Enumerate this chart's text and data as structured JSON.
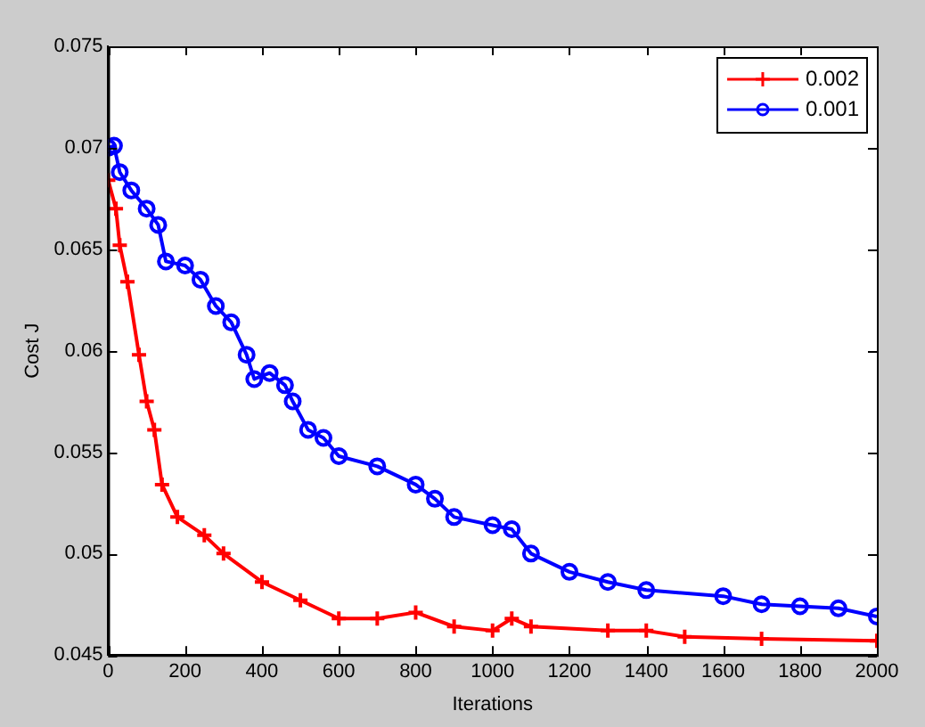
{
  "chart_data": {
    "type": "line",
    "xlabel": "Iterations",
    "ylabel": "Cost J",
    "xlim": [
      0,
      2000
    ],
    "xticks": [
      0,
      200,
      400,
      600,
      800,
      1000,
      1200,
      1400,
      1600,
      1800,
      2000
    ],
    "ylim": [
      0.045,
      0.075
    ],
    "yticks": [
      0.045,
      0.05,
      0.055,
      0.06,
      0.065,
      0.07,
      0.075
    ],
    "grid": false,
    "legend": "top right",
    "line_style": "solid",
    "series": [
      {
        "name": "0.002",
        "color": "#ff0000",
        "marker": "cross",
        "x": [
          0,
          20,
          30,
          50,
          80,
          100,
          120,
          140,
          180,
          250,
          300,
          400,
          500,
          600,
          700,
          800,
          900,
          1000,
          1050,
          1100,
          1300,
          1400,
          1500,
          1700,
          2000
        ],
        "values": [
          0.0684,
          0.067,
          0.0652,
          0.0634,
          0.0598,
          0.0575,
          0.0561,
          0.0534,
          0.0518,
          0.0509,
          0.05,
          0.0486,
          0.0477,
          0.0468,
          0.0468,
          0.0471,
          0.0464,
          0.0462,
          0.0468,
          0.0464,
          0.0462,
          0.0462,
          0.0459,
          0.0458,
          0.0457
        ]
      },
      {
        "name": "0.001",
        "color": "#0000ff",
        "marker": "circle",
        "x": [
          0,
          15,
          30,
          60,
          100,
          130,
          150,
          200,
          240,
          280,
          320,
          360,
          380,
          420,
          460,
          480,
          520,
          560,
          600,
          700,
          800,
          850,
          900,
          1000,
          1050,
          1100,
          1200,
          1300,
          1400,
          1600,
          1700,
          1800,
          1900,
          2000
        ],
        "values": [
          0.07,
          0.0701,
          0.0688,
          0.0679,
          0.067,
          0.0662,
          0.0644,
          0.0642,
          0.0635,
          0.0622,
          0.0614,
          0.0598,
          0.0586,
          0.0589,
          0.0583,
          0.0575,
          0.0561,
          0.0557,
          0.0548,
          0.0543,
          0.0534,
          0.0527,
          0.0518,
          0.0514,
          0.0512,
          0.05,
          0.0491,
          0.0486,
          0.0482,
          0.0479,
          0.0475,
          0.0474,
          0.0473,
          0.0469
        ]
      }
    ]
  }
}
